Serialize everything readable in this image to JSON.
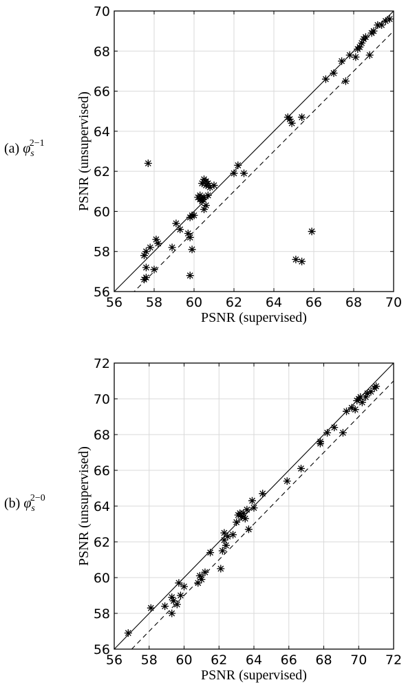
{
  "chart_data": [
    {
      "type": "scatter",
      "panel_label": {
        "prefix": "(a)",
        "symbol": "φ",
        "subscript": "s",
        "superscript": "2−1"
      },
      "xlabel": "PSNR (supervised)",
      "ylabel": "PSNR (unsupervised)",
      "xlim": [
        56,
        70
      ],
      "ylim": [
        56,
        70
      ],
      "xticks": [
        56,
        58,
        60,
        62,
        64,
        66,
        68,
        70
      ],
      "yticks": [
        56,
        58,
        60,
        62,
        64,
        66,
        68,
        70
      ],
      "grid": true,
      "marker": "asterisk",
      "reference_lines": [
        {
          "style": "solid",
          "slope": 1,
          "intercept": 0
        },
        {
          "style": "dashed",
          "slope": 1,
          "intercept": -1
        }
      ],
      "series": [
        {
          "x": [
            57.7,
            57.5,
            57.6,
            57.6,
            57.5,
            57.6,
            57.8,
            58.1,
            58.2,
            58.0,
            59.1,
            59.3,
            58.9,
            59.7,
            59.8,
            59.9,
            60.0,
            59.9,
            59.8,
            59.8,
            60.2,
            60.3,
            60.3,
            60.4,
            60.5,
            60.6,
            60.6,
            60.7,
            60.5,
            60.4,
            60.4,
            60.5,
            60.6,
            60.7,
            60.8,
            61.0,
            62.0,
            62.2,
            62.5,
            64.7,
            64.8,
            64.9,
            65.1,
            65.4,
            65.4,
            65.9,
            66.6,
            67.0,
            67.4,
            67.6,
            67.8,
            68.1,
            68.2,
            68.4,
            68.3,
            68.6,
            68.9,
            69.0,
            69.2,
            69.4,
            69.6,
            69.8,
            68.8,
            68.5
          ],
          "y": [
            62.4,
            56.6,
            56.7,
            57.2,
            57.8,
            58.0,
            58.2,
            58.6,
            58.4,
            57.1,
            59.4,
            59.1,
            58.2,
            58.9,
            58.7,
            58.1,
            59.8,
            59.8,
            56.8,
            59.7,
            60.7,
            60.8,
            60.6,
            61.4,
            61.6,
            61.3,
            61.5,
            61.4,
            60.7,
            60.6,
            60.5,
            60.1,
            60.3,
            60.8,
            61.2,
            61.3,
            61.9,
            62.3,
            61.9,
            64.7,
            64.6,
            64.4,
            57.6,
            57.5,
            64.7,
            59.0,
            66.6,
            66.9,
            67.5,
            66.5,
            67.8,
            67.7,
            68.1,
            68.4,
            68.2,
            68.7,
            68.9,
            69.0,
            69.3,
            69.3,
            69.5,
            69.6,
            67.8,
            68.6
          ]
        }
      ]
    },
    {
      "type": "scatter",
      "panel_label": {
        "prefix": "(b)",
        "symbol": "φ",
        "subscript": "s",
        "superscript": "2−0"
      },
      "xlabel": "PSNR (supervised)",
      "ylabel": "PSNR (unsupervised)",
      "xlim": [
        56,
        72
      ],
      "ylim": [
        56,
        72
      ],
      "xticks": [
        56,
        58,
        60,
        62,
        64,
        66,
        68,
        70,
        72
      ],
      "yticks": [
        56,
        58,
        60,
        62,
        64,
        66,
        68,
        70,
        72
      ],
      "grid": true,
      "marker": "asterisk",
      "reference_lines": [
        {
          "style": "solid",
          "slope": 1,
          "intercept": 0
        },
        {
          "style": "dashed",
          "slope": 1,
          "intercept": -1
        }
      ],
      "series": [
        {
          "x": [
            56.8,
            58.1,
            58.9,
            59.3,
            59.3,
            59.4,
            59.6,
            59.7,
            59.8,
            60.0,
            60.8,
            60.9,
            61.0,
            61.2,
            61.5,
            62.1,
            62.2,
            62.3,
            62.3,
            62.4,
            62.5,
            62.8,
            63.0,
            63.1,
            63.2,
            63.3,
            63.4,
            63.5,
            63.6,
            63.7,
            63.9,
            64.0,
            64.5,
            65.9,
            66.7,
            67.8,
            67.8,
            68.2,
            68.6,
            69.1,
            69.3,
            69.6,
            69.8,
            69.9,
            70.0,
            70.1,
            70.2,
            70.4,
            70.5,
            70.7,
            70.9,
            71.0
          ],
          "y": [
            56.9,
            58.3,
            58.4,
            58.0,
            58.9,
            58.7,
            58.5,
            59.7,
            59.0,
            59.5,
            59.7,
            60.1,
            59.9,
            60.3,
            61.4,
            60.5,
            61.5,
            62.1,
            62.5,
            61.8,
            62.3,
            62.4,
            63.1,
            63.5,
            63.6,
            63.4,
            63.6,
            63.3,
            63.8,
            62.7,
            64.3,
            63.9,
            64.7,
            65.4,
            66.1,
            67.5,
            67.6,
            68.1,
            68.4,
            68.1,
            69.3,
            69.5,
            69.4,
            69.9,
            70.0,
            70.1,
            69.8,
            70.1,
            70.3,
            70.4,
            70.6,
            70.7
          ]
        }
      ]
    }
  ]
}
